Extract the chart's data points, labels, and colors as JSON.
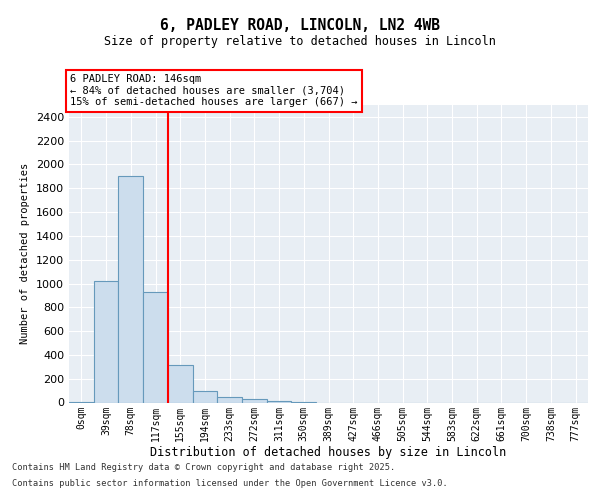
{
  "title": "6, PADLEY ROAD, LINCOLN, LN2 4WB",
  "subtitle": "Size of property relative to detached houses in Lincoln",
  "xlabel": "Distribution of detached houses by size in Lincoln",
  "ylabel": "Number of detached properties",
  "bar_labels": [
    "0sqm",
    "39sqm",
    "78sqm",
    "117sqm",
    "155sqm",
    "194sqm",
    "233sqm",
    "272sqm",
    "311sqm",
    "350sqm",
    "389sqm",
    "427sqm",
    "466sqm",
    "505sqm",
    "544sqm",
    "583sqm",
    "622sqm",
    "661sqm",
    "700sqm",
    "738sqm",
    "777sqm"
  ],
  "bar_values": [
    5,
    1020,
    1900,
    930,
    315,
    100,
    50,
    30,
    15,
    5,
    0,
    0,
    0,
    0,
    0,
    0,
    0,
    0,
    0,
    0,
    0
  ],
  "bar_color": "#ccdded",
  "bar_edge_color": "#6699bb",
  "ylim": [
    0,
    2500
  ],
  "yticks": [
    0,
    200,
    400,
    600,
    800,
    1000,
    1200,
    1400,
    1600,
    1800,
    2000,
    2200,
    2400
  ],
  "red_line_x": 4.0,
  "annotation_line1": "6 PADLEY ROAD: 146sqm",
  "annotation_line2": "← 84% of detached houses are smaller (3,704)",
  "annotation_line3": "15% of semi-detached houses are larger (667) →",
  "background_color": "#e8eef4",
  "grid_color": "#ffffff",
  "footer_line1": "Contains HM Land Registry data © Crown copyright and database right 2025.",
  "footer_line2": "Contains public sector information licensed under the Open Government Licence v3.0."
}
